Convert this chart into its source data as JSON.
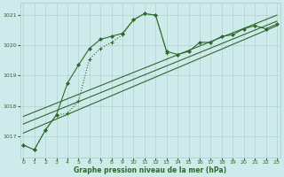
{
  "bg_color": "#ceeaea",
  "grid_color": "#b0d4d4",
  "line_dark": "#2d6a2d",
  "line_mid": "#3a7a3a",
  "xlabel": "Graphe pression niveau de la mer (hPa)",
  "xlim": [
    -0.3,
    23.3
  ],
  "ylim": [
    1016.3,
    1021.4
  ],
  "yticks": [
    1017,
    1018,
    1019,
    1020,
    1021
  ],
  "xticks": [
    0,
    1,
    2,
    3,
    4,
    5,
    6,
    7,
    8,
    9,
    10,
    11,
    12,
    13,
    14,
    15,
    16,
    17,
    18,
    19,
    20,
    21,
    22,
    23
  ],
  "curve1_x": [
    0,
    1,
    2,
    3,
    4,
    5,
    6,
    7,
    8,
    9,
    10,
    11,
    12,
    13,
    14,
    15,
    16,
    17,
    18,
    19,
    20,
    21,
    22,
    23
  ],
  "curve1_y": [
    1016.7,
    1016.55,
    1017.2,
    1017.7,
    1018.75,
    1019.35,
    1019.9,
    1020.2,
    1020.3,
    1020.4,
    1020.85,
    1021.05,
    1021.0,
    1019.8,
    1019.7,
    1019.8,
    1020.1,
    1020.1,
    1020.3,
    1020.35,
    1020.55,
    1020.65,
    1020.55,
    1020.7
  ],
  "curve2_x": [
    0,
    1,
    2,
    3,
    4,
    5,
    6,
    7,
    8,
    9,
    10,
    11,
    12,
    13
  ],
  "curve2_y": [
    1016.7,
    1016.55,
    1017.2,
    1017.7,
    1017.75,
    1018.15,
    1019.55,
    1019.9,
    1020.1,
    1020.35,
    1020.85,
    1021.05,
    1021.0,
    1019.75
  ],
  "line1_x": [
    0,
    23
  ],
  "line1_y": [
    1017.1,
    1020.65
  ],
  "line2_x": [
    0,
    23
  ],
  "line2_y": [
    1017.4,
    1020.8
  ],
  "line3_x": [
    0,
    23
  ],
  "line3_y": [
    1017.65,
    1021.0
  ]
}
